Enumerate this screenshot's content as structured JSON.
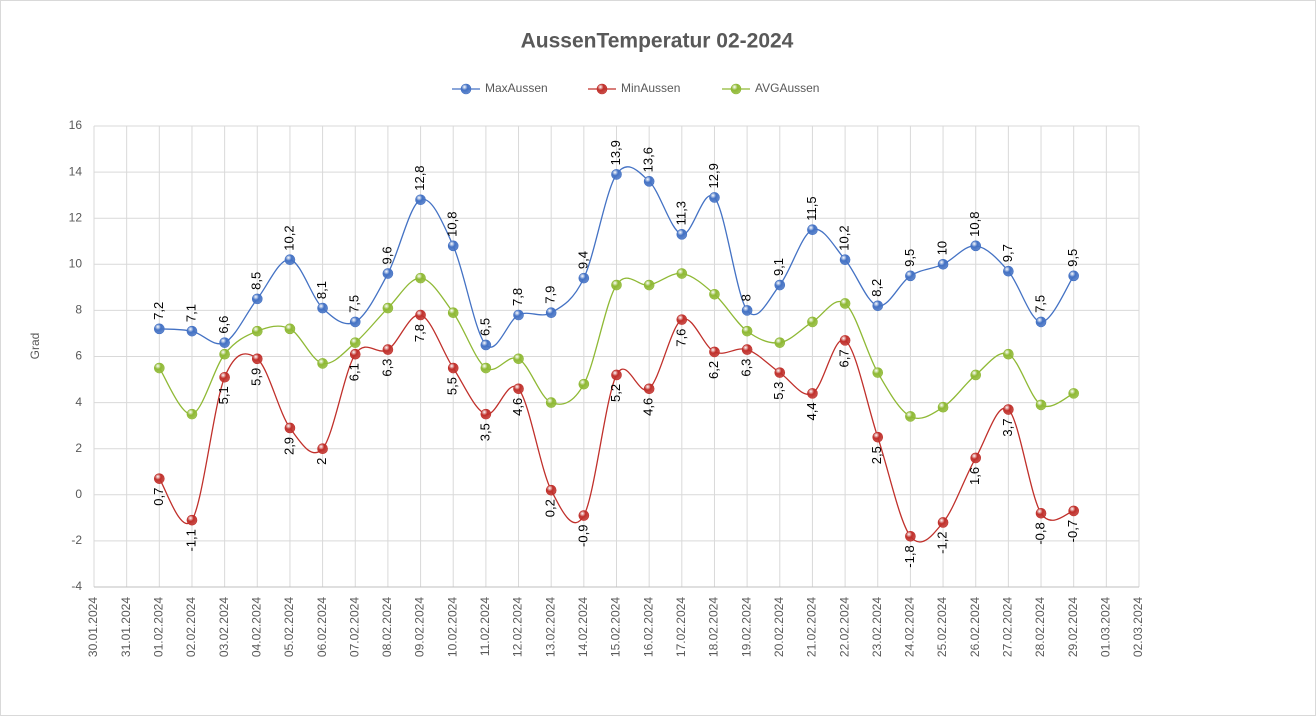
{
  "chart_data": {
    "type": "line",
    "title": "AussenTemperatur 02-2024",
    "y_label": "Grad",
    "categories": [
      "30.01.2024",
      "31.01.2024",
      "01.02.2024",
      "02.02.2024",
      "03.02.2024",
      "04.02.2024",
      "05.02.2024",
      "06.02.2024",
      "07.02.2024",
      "08.02.2024",
      "09.02.2024",
      "10.02.2024",
      "11.02.2024",
      "12.02.2024",
      "13.02.2024",
      "14.02.2024",
      "15.02.2024",
      "16.02.2024",
      "17.02.2024",
      "18.02.2024",
      "19.02.2024",
      "20.02.2024",
      "21.02.2024",
      "22.02.2024",
      "23.02.2024",
      "24.02.2024",
      "25.02.2024",
      "26.02.2024",
      "27.02.2024",
      "28.02.2024",
      "29.02.2024",
      "01.03.2024",
      "02.03.2024"
    ],
    "series": [
      {
        "name": "MaxAussen",
        "color": "#4472c4",
        "label_position": "above",
        "values": [
          null,
          null,
          7.2,
          7.1,
          6.6,
          8.5,
          10.2,
          8.1,
          7.5,
          9.6,
          12.8,
          10.8,
          6.5,
          7.8,
          7.9,
          9.4,
          13.9,
          13.6,
          11.3,
          12.9,
          8,
          9.1,
          11.5,
          10.2,
          8.2,
          9.5,
          10,
          10.8,
          9.7,
          7.5,
          9.5,
          null,
          null
        ],
        "value_labels": [
          null,
          null,
          "7,2",
          "7,1",
          "6,6",
          "8,5",
          "10,2",
          "8,1",
          "7,5",
          "9,6",
          "12,8",
          "10,8",
          "6,5",
          "7,8",
          "7,9",
          "9,4",
          "13,9",
          "13,6",
          "11,3",
          "12,9",
          "8",
          "9,1",
          "11,5",
          "10,2",
          "8,2",
          "9,5",
          "10",
          "10,8",
          "9,7",
          "7,5",
          "9,5",
          null,
          null
        ]
      },
      {
        "name": "MinAussen",
        "color": "#c0302b",
        "label_position": "below",
        "values": [
          null,
          null,
          0.7,
          -1.1,
          5.1,
          5.9,
          2.9,
          2,
          6.1,
          6.3,
          7.8,
          5.5,
          3.5,
          4.6,
          0.2,
          -0.9,
          5.2,
          4.6,
          7.6,
          6.2,
          6.3,
          5.3,
          4.4,
          6.7,
          2.5,
          -1.8,
          -1.2,
          1.6,
          3.7,
          -0.8,
          -0.7,
          null,
          null
        ],
        "value_labels": [
          null,
          null,
          "0,7",
          "-1,1",
          "5,1",
          "5,9",
          "2,9",
          "2",
          "6,1",
          "6,3",
          "7,8",
          "5,5",
          "3,5",
          "4,6",
          "0,2",
          "-0,9",
          "5,2",
          "4,6",
          "7,6",
          "6,2",
          "6,3",
          "5,3",
          "4,4",
          "6,7",
          "2,5",
          "-1,8",
          "-1,2",
          "1,6",
          "3,7",
          "-0,8",
          "-0,7",
          null,
          null
        ]
      },
      {
        "name": "AVGAussen",
        "color": "#8fb935",
        "values": [
          null,
          null,
          5.5,
          3.5,
          6.1,
          7.1,
          7.2,
          5.7,
          6.6,
          8.1,
          9.4,
          7.9,
          5.5,
          5.9,
          4.0,
          4.8,
          9.1,
          9.1,
          9.6,
          8.7,
          7.1,
          6.6,
          7.5,
          8.3,
          5.3,
          3.4,
          3.8,
          5.2,
          6.1,
          3.9,
          4.4,
          null,
          null
        ]
      }
    ],
    "ylim": [
      -4,
      16
    ],
    "yticks": [
      -4,
      -2,
      0,
      2,
      4,
      6,
      8,
      10,
      12,
      14,
      16
    ],
    "grid": true,
    "smooth": true,
    "legend": "top"
  }
}
